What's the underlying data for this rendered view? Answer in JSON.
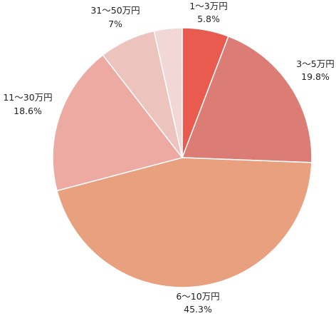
{
  "chart_data": {
    "type": "pie",
    "title": "",
    "start_angle_deg": 0,
    "direction": "clockwise",
    "slices": [
      {
        "label": "1〜3万円",
        "value": 5.8,
        "value_label": "5.8%",
        "color": "#e95b4f"
      },
      {
        "label": "3〜5万円",
        "value": 19.8,
        "value_label": "19.8%",
        "color": "#db7d75"
      },
      {
        "label": "6〜10万円",
        "value": 45.3,
        "value_label": "45.3%",
        "color": "#e8a07f"
      },
      {
        "label": "11〜30万円",
        "value": 18.6,
        "value_label": "18.6%",
        "color": "#ecaaa2"
      },
      {
        "label": "31〜50万円",
        "value": 7,
        "value_label": "7%",
        "color": "#ecc3bd"
      },
      {
        "label": "",
        "value": 3.5,
        "value_label": "",
        "color": "#f2d7d7"
      }
    ]
  }
}
